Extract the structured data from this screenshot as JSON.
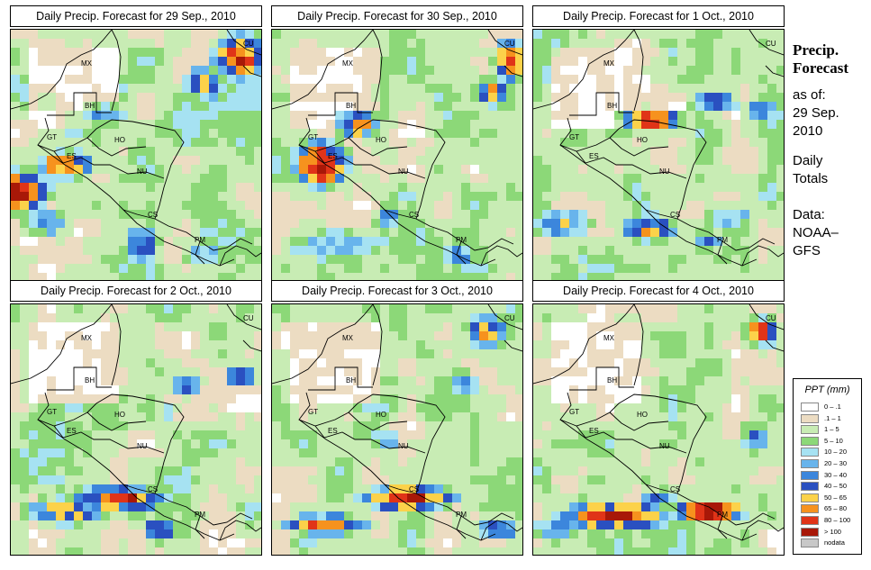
{
  "panels": [
    {
      "title": "Daily Precip. Forecast for  29 Sep., 2010",
      "scenario": "p1"
    },
    {
      "title": "Daily Precip. Forecast for  30 Sep., 2010",
      "scenario": "p2"
    },
    {
      "title": "Daily Precip. Forecast for  1 Oct., 2010",
      "scenario": "p3"
    },
    {
      "title": "Daily Precip. Forecast for  2 Oct., 2010",
      "scenario": "p4"
    },
    {
      "title": "Daily Precip. Forecast for  3 Oct., 2010",
      "scenario": "p5"
    },
    {
      "title": "Daily Precip. Forecast for  4 Oct., 2010",
      "scenario": "p6"
    }
  ],
  "region_labels": [
    "MX",
    "BH",
    "GT",
    "HO",
    "ES",
    "NU",
    "CS",
    "PM",
    "CU"
  ],
  "side": {
    "title_line1": "Precip.",
    "title_line2": "Forecast",
    "asof_line1": "as of:",
    "asof_line2": "29 Sep.",
    "asof_line3": "2010",
    "totals_line1": "Daily",
    "totals_line2": "Totals",
    "data_line1": "Data:",
    "data_line2": "NOAA–",
    "data_line3": "GFS"
  },
  "legend": {
    "title": "PPT (mm)",
    "items": [
      {
        "label": "0 – .1",
        "color": "#ffffff"
      },
      {
        "label": ".1 – 1",
        "color": "#ecdcc2"
      },
      {
        "label": "1 – 5",
        "color": "#c8ecb4"
      },
      {
        "label": "5 – 10",
        "color": "#8cd878"
      },
      {
        "label": "10 – 20",
        "color": "#a6e2f2"
      },
      {
        "label": "20 – 30",
        "color": "#68b4ec"
      },
      {
        "label": "30 – 40",
        "color": "#3c86dc"
      },
      {
        "label": "40 – 50",
        "color": "#2a50c0"
      },
      {
        "label": "50 – 65",
        "color": "#fcd24a"
      },
      {
        "label": "65 – 80",
        "color": "#f6921e"
      },
      {
        "label": "80 – 100",
        "color": "#e03418"
      },
      {
        "label": "> 100",
        "color": "#a81808"
      },
      {
        "label": "nodata",
        "color": "#c8c8c8"
      }
    ]
  }
}
